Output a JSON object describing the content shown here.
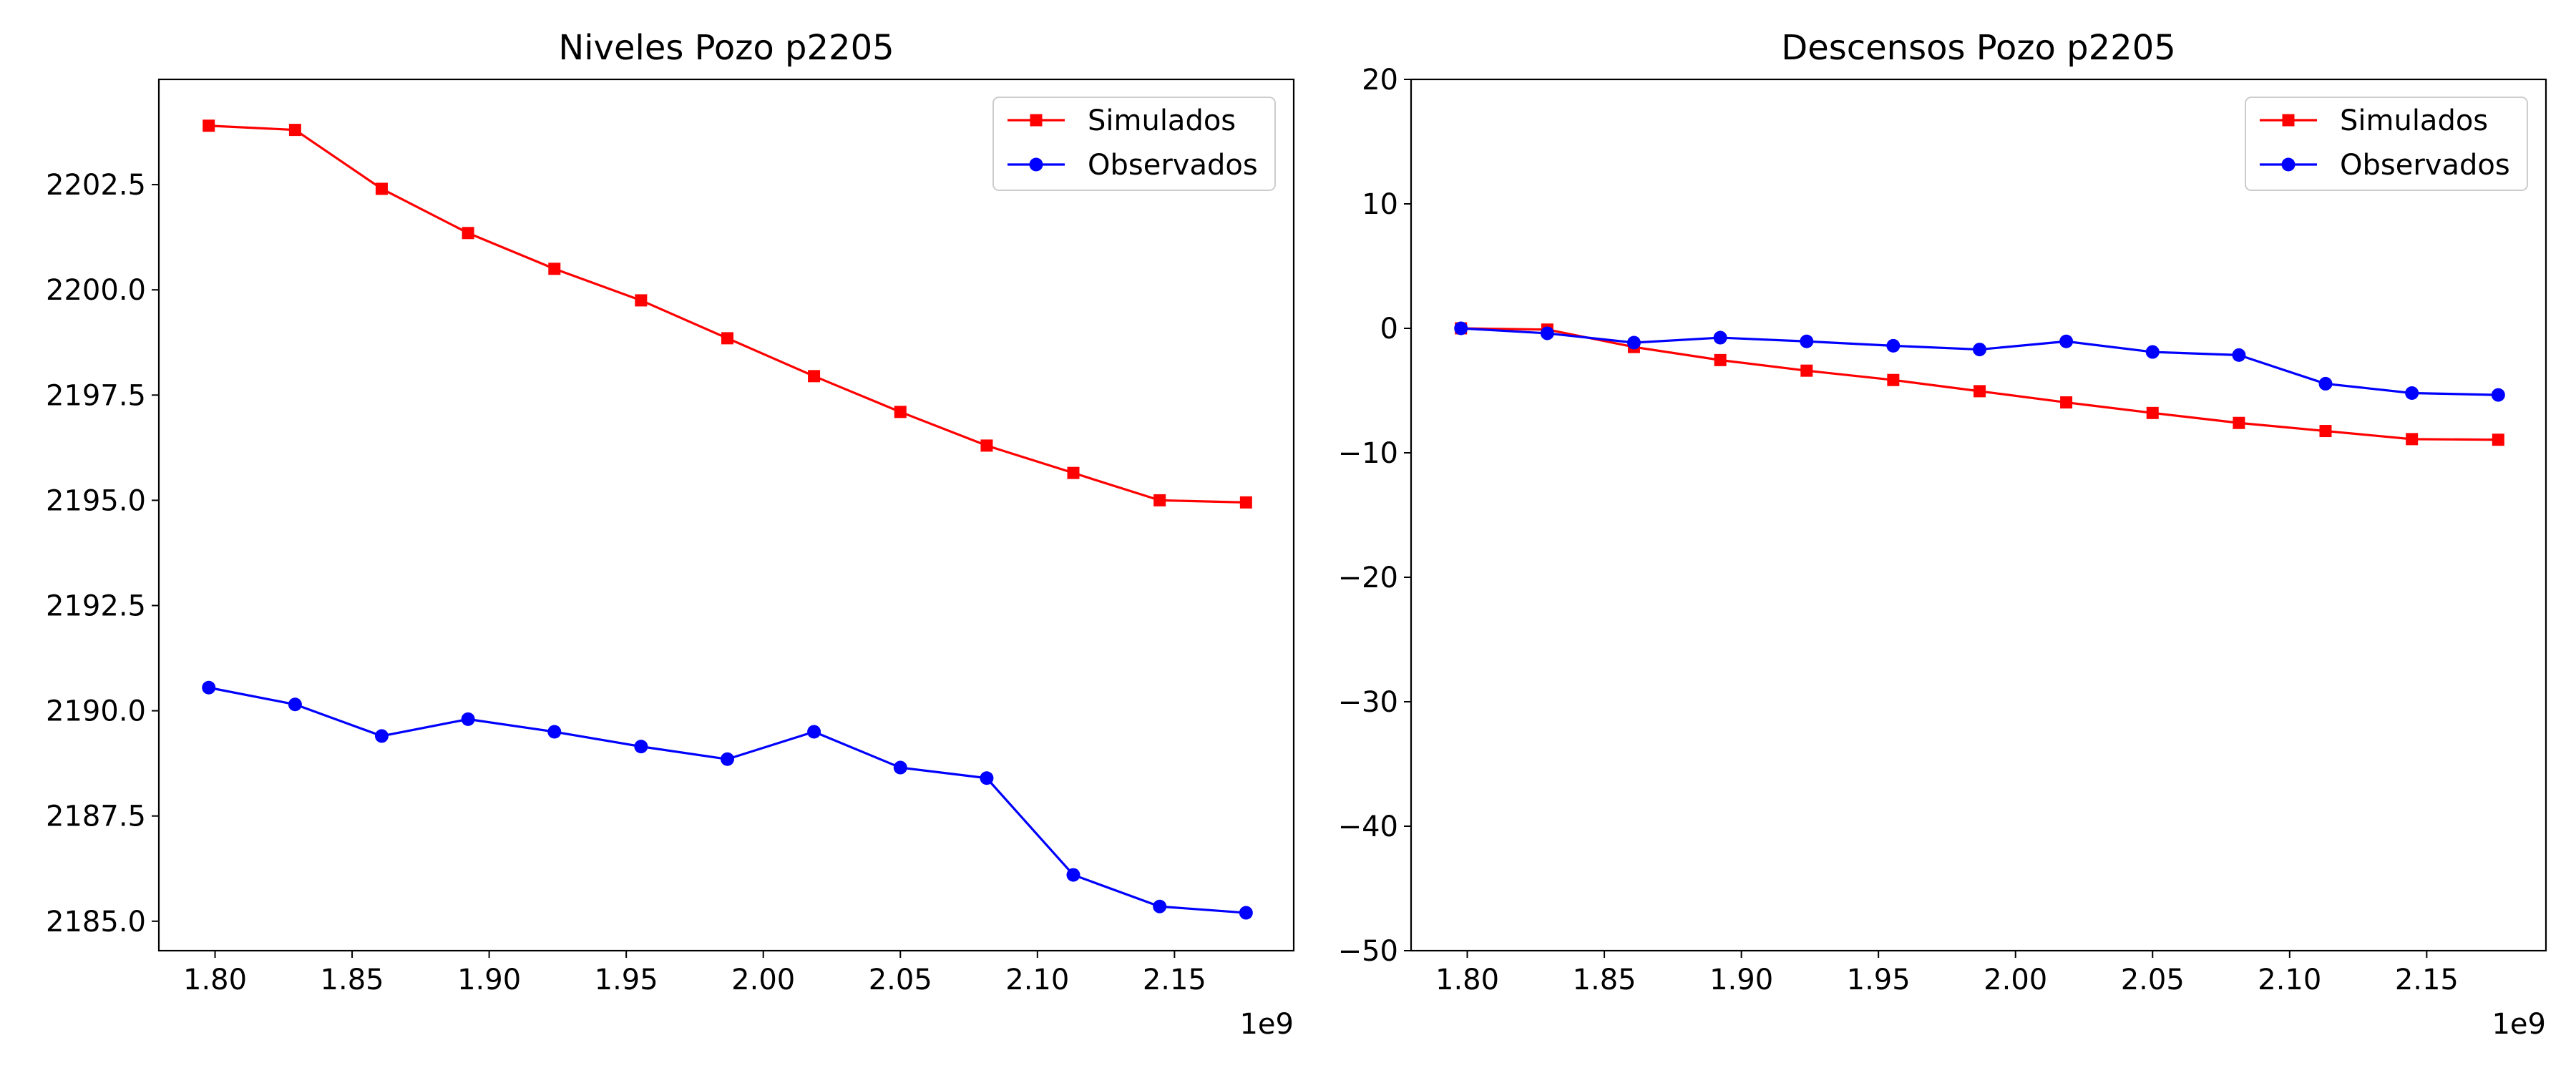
{
  "chart_data": [
    {
      "type": "line",
      "title": "Niveles Pozo p2205",
      "xlabel": "",
      "ylabel": "",
      "x_offset_label": "1e9",
      "xlim": [
        1.7795,
        2.1935
      ],
      "ylim": [
        2184.3,
        2205.0
      ],
      "xticks": [
        1.8,
        1.85,
        1.9,
        1.95,
        2.0,
        2.05,
        2.1,
        2.15
      ],
      "xtick_labels": [
        "1.80",
        "1.85",
        "1.90",
        "1.95",
        "2.00",
        "2.05",
        "2.10",
        "2.15"
      ],
      "yticks": [
        2185.0,
        2187.5,
        2190.0,
        2192.5,
        2195.0,
        2197.5,
        2200.0,
        2202.5
      ],
      "ytick_labels": [
        "2185.0",
        "2187.5",
        "2190.0",
        "2192.5",
        "2195.0",
        "2197.5",
        "2200.0",
        "2202.5"
      ],
      "x": [
        1.7977,
        1.8292,
        1.8608,
        1.8923,
        1.9238,
        1.9554,
        1.9869,
        2.0185,
        2.05,
        2.0815,
        2.1131,
        2.1446,
        2.1761
      ],
      "series": [
        {
          "name": "Simulados",
          "color": "#ff0000",
          "marker": "square",
          "values": [
            2203.9,
            2203.8,
            2202.4,
            2201.35,
            2200.5,
            2199.75,
            2198.85,
            2197.95,
            2197.1,
            2196.3,
            2195.65,
            2195.0,
            2194.95
          ]
        },
        {
          "name": "Observados",
          "color": "#0000ff",
          "marker": "circle",
          "values": [
            2190.55,
            2190.15,
            2189.4,
            2189.8,
            2189.5,
            2189.15,
            2188.85,
            2189.5,
            2188.65,
            2188.4,
            2186.1,
            2185.35,
            2185.2
          ]
        }
      ],
      "grid": false,
      "legend": "upper right"
    },
    {
      "type": "line",
      "title": "Descensos Pozo p2205",
      "xlabel": "",
      "ylabel": "",
      "x_offset_label": "1e9",
      "xlim": [
        1.7795,
        2.1935
      ],
      "ylim": [
        -50,
        20
      ],
      "xticks": [
        1.8,
        1.85,
        1.9,
        1.95,
        2.0,
        2.05,
        2.1,
        2.15
      ],
      "xtick_labels": [
        "1.80",
        "1.85",
        "1.90",
        "1.95",
        "2.00",
        "2.05",
        "2.10",
        "2.15"
      ],
      "yticks": [
        -50,
        -40,
        -30,
        -20,
        -10,
        0,
        10,
        20
      ],
      "ytick_labels": [
        "−50",
        "−40",
        "−30",
        "−20",
        "−10",
        "0",
        "10",
        "20"
      ],
      "x": [
        1.7977,
        1.8292,
        1.8608,
        1.8923,
        1.9238,
        1.9554,
        1.9869,
        2.0185,
        2.05,
        2.0815,
        2.1131,
        2.1446,
        2.1761
      ],
      "series": [
        {
          "name": "Simulados",
          "color": "#ff0000",
          "marker": "square",
          "values": [
            0.0,
            -0.1,
            -1.5,
            -2.55,
            -3.4,
            -4.15,
            -5.05,
            -5.95,
            -6.8,
            -7.6,
            -8.25,
            -8.9,
            -8.95
          ]
        },
        {
          "name": "Observados",
          "color": "#0000ff",
          "marker": "circle",
          "values": [
            0.0,
            -0.4,
            -1.15,
            -0.75,
            -1.05,
            -1.4,
            -1.7,
            -1.05,
            -1.9,
            -2.15,
            -4.45,
            -5.2,
            -5.35
          ]
        }
      ],
      "grid": false,
      "legend": "upper right"
    }
  ]
}
